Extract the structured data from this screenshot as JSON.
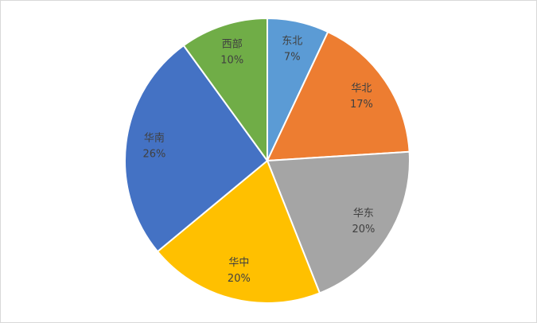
{
  "chart_data": {
    "type": "pie",
    "categories": [
      "东北",
      "华北",
      "华东",
      "华中",
      "华南",
      "西部"
    ],
    "values": [
      7,
      17,
      20,
      20,
      26,
      10
    ],
    "value_labels": [
      "7%",
      "17%",
      "20%",
      "20%",
      "26%",
      "10%"
    ],
    "colors": [
      "#5b9bd5",
      "#ed7d31",
      "#a5a5a5",
      "#ffc000",
      "#4472c4",
      "#70ad47"
    ]
  }
}
